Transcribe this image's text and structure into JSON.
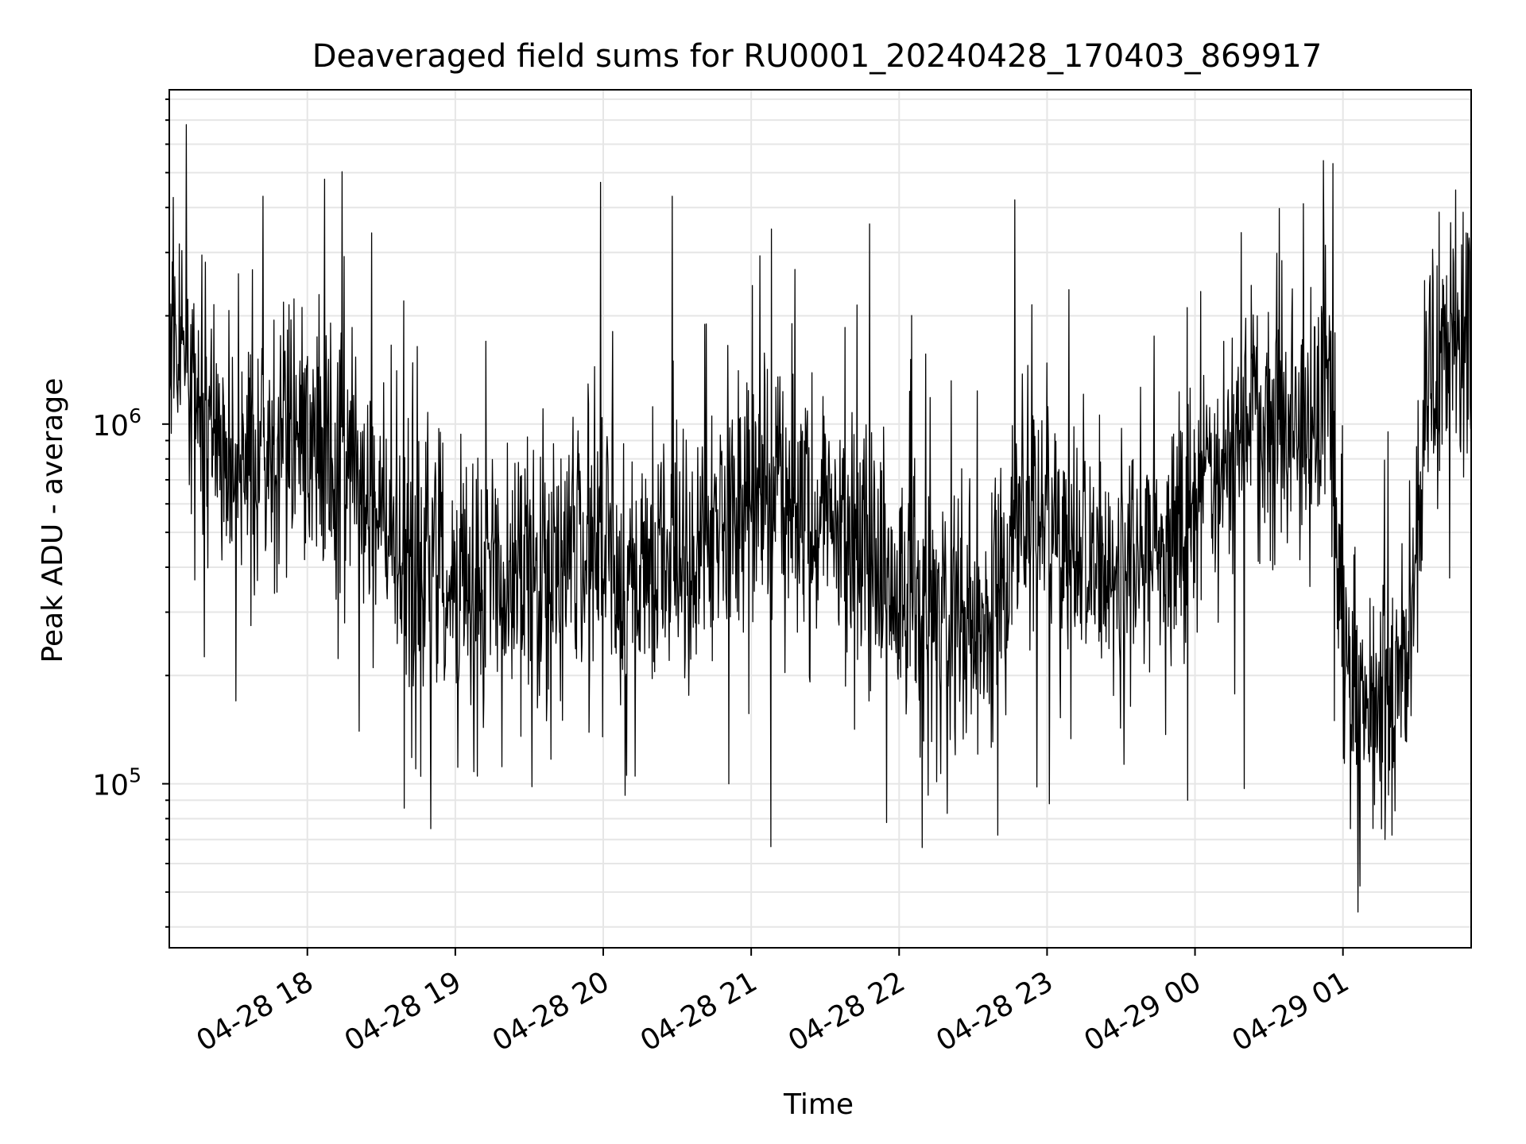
{
  "chart_data": {
    "type": "line",
    "title": "Deaveraged field sums for RU0001_20240428_170403_869917",
    "xlabel": "Time",
    "ylabel": "Peak ADU - average",
    "yscale": "log",
    "ylim": [
      35000,
      8500000
    ],
    "xlim": [
      "2024-04-28T17:04:00",
      "2024-04-29T01:52:00"
    ],
    "grid": true,
    "line_color": "#000000",
    "grid_color": "#e6e6e6",
    "x_ticks": [
      {
        "value": "2024-04-28T18:00:00",
        "label": "04-28 18"
      },
      {
        "value": "2024-04-28T19:00:00",
        "label": "04-28 19"
      },
      {
        "value": "2024-04-28T20:00:00",
        "label": "04-28 20"
      },
      {
        "value": "2024-04-28T21:00:00",
        "label": "04-28 21"
      },
      {
        "value": "2024-04-28T22:00:00",
        "label": "04-28 22"
      },
      {
        "value": "2024-04-28T23:00:00",
        "label": "04-28 23"
      },
      {
        "value": "2024-04-29T00:00:00",
        "label": "04-29 00"
      },
      {
        "value": "2024-04-29T01:00:00",
        "label": "04-29 01"
      }
    ],
    "y_ticks": [
      {
        "value": 100000,
        "base": "10",
        "exp": "5"
      },
      {
        "value": 1000000,
        "base": "10",
        "exp": "6"
      }
    ],
    "series": [
      {
        "name": "",
        "trend": [
          {
            "x": "2024-04-28T17:04:00",
            "y": 1800000
          },
          {
            "x": "2024-04-28T17:12:00",
            "y": 1400000
          },
          {
            "x": "2024-04-28T17:20:00",
            "y": 1000000
          },
          {
            "x": "2024-04-28T17:35:00",
            "y": 800000
          },
          {
            "x": "2024-04-28T18:00:00",
            "y": 900000
          },
          {
            "x": "2024-04-28T18:20:00",
            "y": 750000
          },
          {
            "x": "2024-04-28T18:40:00",
            "y": 450000
          },
          {
            "x": "2024-04-28T19:00:00",
            "y": 350000
          },
          {
            "x": "2024-04-28T19:20:00",
            "y": 380000
          },
          {
            "x": "2024-04-28T20:00:00",
            "y": 400000
          },
          {
            "x": "2024-04-28T20:40:00",
            "y": 420000
          },
          {
            "x": "2024-04-28T21:00:00",
            "y": 650000
          },
          {
            "x": "2024-04-28T21:20:00",
            "y": 550000
          },
          {
            "x": "2024-04-28T22:00:00",
            "y": 350000
          },
          {
            "x": "2024-04-28T22:30:00",
            "y": 250000
          },
          {
            "x": "2024-04-28T22:55:00",
            "y": 600000
          },
          {
            "x": "2024-04-28T23:20:00",
            "y": 400000
          },
          {
            "x": "2024-04-28T23:50:00",
            "y": 450000
          },
          {
            "x": "2024-04-29T00:20:00",
            "y": 1000000
          },
          {
            "x": "2024-04-29T00:55:00",
            "y": 1100000
          },
          {
            "x": "2024-04-29T01:00:00",
            "y": 250000
          },
          {
            "x": "2024-04-29T01:10:00",
            "y": 160000
          },
          {
            "x": "2024-04-29T01:25:00",
            "y": 180000
          },
          {
            "x": "2024-04-29T01:35:00",
            "y": 1300000
          },
          {
            "x": "2024-04-29T01:52:00",
            "y": 1700000
          }
        ],
        "spikes": [
          {
            "x": "2024-04-28T17:11:00",
            "y": 6800000
          },
          {
            "x": "2024-04-28T17:42:00",
            "y": 4300000
          },
          {
            "x": "2024-04-28T18:26:00",
            "y": 3400000
          },
          {
            "x": "2024-04-28T18:39:00",
            "y": 2200000
          },
          {
            "x": "2024-04-28T19:59:00",
            "y": 4700000
          },
          {
            "x": "2024-04-28T20:28:00",
            "y": 4300000
          },
          {
            "x": "2024-04-28T21:48:00",
            "y": 3600000
          },
          {
            "x": "2024-04-28T22:47:00",
            "y": 4200000
          },
          {
            "x": "2024-04-29T00:52:00",
            "y": 5400000
          },
          {
            "x": "2024-04-29T00:56:00",
            "y": 5300000
          },
          {
            "x": "2024-04-29T00:44:00",
            "y": 4100000
          },
          {
            "x": "2024-04-29T01:50:00",
            "y": 3400000
          }
        ],
        "dips": [
          {
            "x": "2024-04-28T17:31:00",
            "y": 170000
          },
          {
            "x": "2024-04-28T18:21:00",
            "y": 140000
          },
          {
            "x": "2024-04-28T18:44:00",
            "y": 110000
          },
          {
            "x": "2024-04-28T18:50:00",
            "y": 75000
          },
          {
            "x": "2024-04-28T19:09:00",
            "y": 105000
          },
          {
            "x": "2024-04-28T20:13:00",
            "y": 105000
          },
          {
            "x": "2024-04-28T20:51:00",
            "y": 100000
          },
          {
            "x": "2024-04-28T21:55:00",
            "y": 78000
          },
          {
            "x": "2024-04-28T22:40:00",
            "y": 72000
          },
          {
            "x": "2024-04-28T23:01:00",
            "y": 88000
          },
          {
            "x": "2024-04-28T23:57:00",
            "y": 90000
          },
          {
            "x": "2024-04-29T00:20:00",
            "y": 97000
          },
          {
            "x": "2024-04-29T01:03:00",
            "y": 75000
          },
          {
            "x": "2024-04-29T01:06:00",
            "y": 44000
          },
          {
            "x": "2024-04-29T01:07:00",
            "y": 52000
          },
          {
            "x": "2024-04-29T01:17:00",
            "y": 70000
          },
          {
            "x": "2024-04-29T01:20:00",
            "y": 72000
          }
        ]
      }
    ]
  }
}
